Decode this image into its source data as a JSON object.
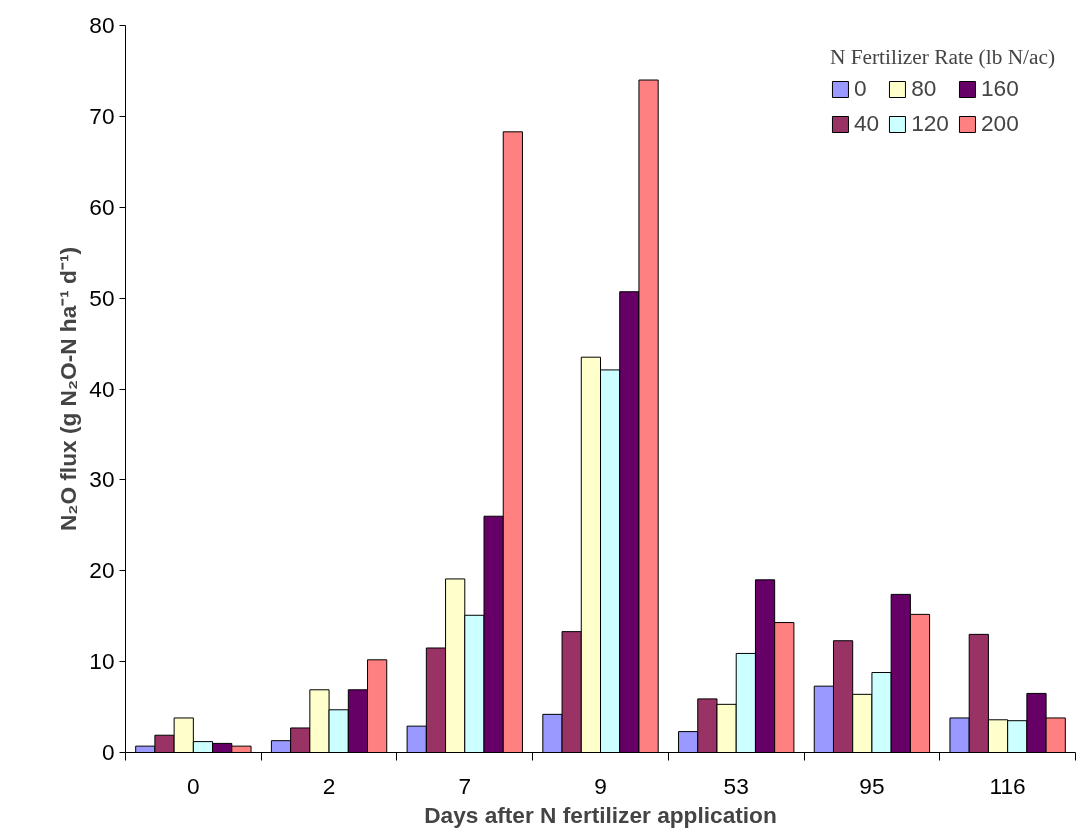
{
  "chart_data": {
    "type": "bar",
    "xlabel": "Days after N fertilizer application",
    "ylabel": "N₂O flux (g N₂O-N ha⁻¹ d⁻¹)",
    "legend_title": "N Fertilizer Rate (lb N/ac)",
    "categories": [
      "0",
      "2",
      "7",
      "9",
      "53",
      "95",
      "116"
    ],
    "series": [
      {
        "name": "0",
        "color": "#9999ff",
        "values": [
          0.7,
          1.3,
          2.9,
          4.2,
          2.3,
          7.3,
          3.8
        ]
      },
      {
        "name": "40",
        "color": "#993366",
        "values": [
          1.9,
          2.7,
          11.5,
          13.3,
          5.9,
          12.3,
          13.0
        ]
      },
      {
        "name": "80",
        "color": "#ffffcc",
        "values": [
          3.8,
          6.9,
          19.1,
          43.5,
          5.3,
          6.4,
          3.6
        ]
      },
      {
        "name": "120",
        "color": "#ccffff",
        "values": [
          1.2,
          4.7,
          15.1,
          42.1,
          10.9,
          8.8,
          3.5
        ]
      },
      {
        "name": "160",
        "color": "#660066",
        "values": [
          1.0,
          6.9,
          26.0,
          50.7,
          19.0,
          17.4,
          6.5
        ]
      },
      {
        "name": "200",
        "color": "#ff8080",
        "values": [
          0.7,
          10.2,
          68.3,
          74.0,
          14.3,
          15.2,
          3.8
        ]
      }
    ],
    "ylim": [
      0,
      80
    ],
    "yticks": [
      0,
      10,
      20,
      30,
      40,
      50,
      60,
      70,
      80
    ],
    "grid": false,
    "legend": "top right"
  }
}
